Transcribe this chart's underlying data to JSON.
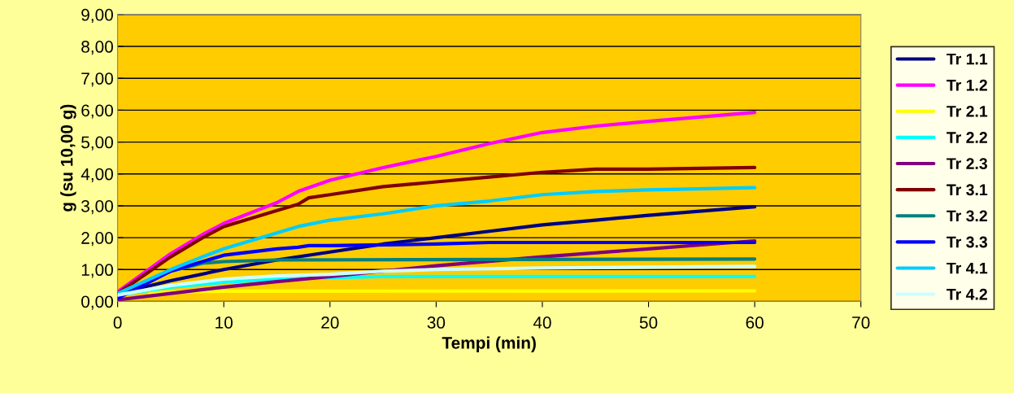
{
  "chart_data": {
    "type": "line",
    "xlabel": "Tempi (min)",
    "ylabel": "g (su 10,00 g)",
    "xlim": [
      0,
      70
    ],
    "xticks": [
      0,
      10,
      20,
      30,
      40,
      50,
      60,
      70
    ],
    "ylim": [
      0,
      9
    ],
    "yticks": [
      {
        "value": 0,
        "label": "0,00"
      },
      {
        "value": 1,
        "label": "1,00"
      },
      {
        "value": 2,
        "label": "2,00"
      },
      {
        "value": 3,
        "label": "3,00"
      },
      {
        "value": 4,
        "label": "4,00"
      },
      {
        "value": 5,
        "label": "5,00"
      },
      {
        "value": 6,
        "label": "6,00"
      },
      {
        "value": 7,
        "label": "7,00"
      },
      {
        "value": 8,
        "label": "8,00"
      },
      {
        "value": 9,
        "label": "9,00"
      }
    ],
    "grid": "y",
    "legend": "right",
    "marker": "none",
    "line_style": "solid",
    "series": [
      {
        "name": "Tr 1.1",
        "color": "#000080",
        "x": [
          0,
          5,
          10,
          15,
          20,
          25,
          30,
          35,
          40,
          45,
          50,
          60
        ],
        "values": [
          0.25,
          0.65,
          1.0,
          1.3,
          1.55,
          1.8,
          2.0,
          2.2,
          2.4,
          2.55,
          2.7,
          2.97
        ]
      },
      {
        "name": "Tr 1.2",
        "color": "#ff00ff",
        "x": [
          0,
          5,
          8,
          10,
          15,
          17,
          20,
          25,
          30,
          35,
          40,
          45,
          50,
          60
        ],
        "values": [
          0.3,
          1.5,
          2.1,
          2.45,
          3.1,
          3.45,
          3.8,
          4.2,
          4.55,
          4.95,
          5.3,
          5.5,
          5.65,
          5.93
        ]
      },
      {
        "name": "Tr 2.1",
        "color": "#ffff00",
        "x": [
          3,
          5,
          10,
          60
        ],
        "values": [
          0.28,
          0.3,
          0.32,
          0.33
        ]
      },
      {
        "name": "Tr 2.2",
        "color": "#00ffff",
        "x": [
          0,
          5,
          10,
          15,
          20,
          25,
          60
        ],
        "values": [
          0.2,
          0.45,
          0.6,
          0.7,
          0.75,
          0.78,
          0.78
        ]
      },
      {
        "name": "Tr 2.3",
        "color": "#800080",
        "x": [
          0,
          5,
          10,
          15,
          20,
          30,
          40,
          50,
          60
        ],
        "values": [
          0.05,
          0.25,
          0.45,
          0.62,
          0.78,
          1.12,
          1.4,
          1.65,
          1.9
        ]
      },
      {
        "name": "Tr 3.1",
        "color": "#800000",
        "x": [
          0,
          5,
          8,
          10,
          15,
          17,
          18,
          20,
          25,
          30,
          35,
          40,
          45,
          50,
          60
        ],
        "values": [
          0.25,
          1.4,
          2.0,
          2.35,
          2.85,
          3.05,
          3.25,
          3.35,
          3.6,
          3.75,
          3.9,
          4.05,
          4.15,
          4.15,
          4.2
        ]
      },
      {
        "name": "Tr 3.2",
        "color": "#008080",
        "x": [
          0,
          5,
          8,
          10,
          15,
          60
        ],
        "values": [
          0.25,
          0.95,
          1.2,
          1.25,
          1.3,
          1.33
        ]
      },
      {
        "name": "Tr 3.3",
        "color": "#0000ff",
        "x": [
          0,
          5,
          8,
          10,
          15,
          17,
          18,
          20,
          30,
          35,
          60
        ],
        "values": [
          0.1,
          0.95,
          1.25,
          1.45,
          1.65,
          1.7,
          1.75,
          1.75,
          1.8,
          1.85,
          1.85
        ]
      },
      {
        "name": "Tr 4.1",
        "color": "#00ccff",
        "x": [
          0,
          5,
          8,
          10,
          15,
          17,
          20,
          25,
          30,
          35,
          40,
          45,
          50,
          60
        ],
        "values": [
          0.25,
          1.0,
          1.4,
          1.65,
          2.15,
          2.35,
          2.55,
          2.75,
          3.0,
          3.15,
          3.35,
          3.45,
          3.5,
          3.57
        ]
      },
      {
        "name": "Tr 4.2",
        "color": "#ccffff",
        "x": [
          0,
          5,
          10,
          15,
          20,
          25,
          30,
          40,
          60
        ],
        "values": [
          0.2,
          0.5,
          0.7,
          0.8,
          0.85,
          0.95,
          1.0,
          1.05,
          1.1
        ]
      }
    ]
  }
}
